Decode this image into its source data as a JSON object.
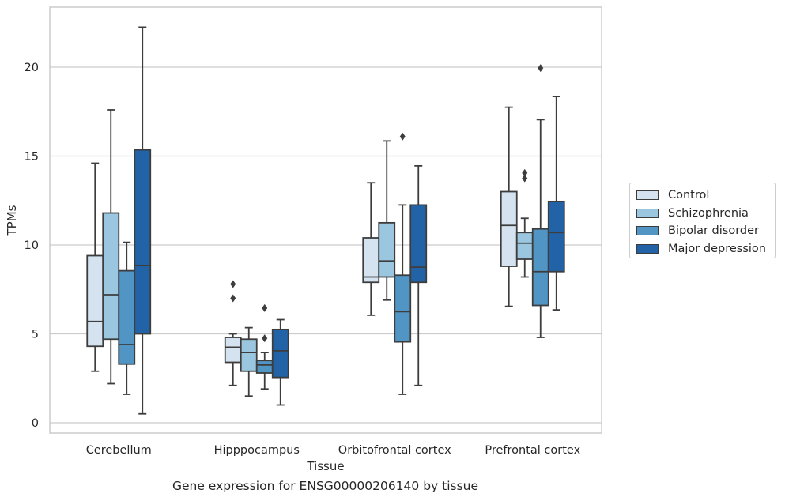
{
  "chart_data": {
    "type": "boxplot",
    "title": "Gene expression for ENSG00000206140 by tissue",
    "xlabel": "Tissue",
    "ylabel": "TPMs",
    "ylim": [
      -0.5,
      23.4
    ],
    "yticks": [
      0,
      5,
      10,
      15,
      20
    ],
    "grid": true,
    "legend_position": "right-outside",
    "categories": [
      "Cerebellum",
      "Hipppocampus",
      "Orbitofrontal cortex",
      "Prefrontal cortex"
    ],
    "series": [
      {
        "name": "Control",
        "color": "#d5e3f1",
        "boxes": [
          {
            "whislo": 2.9,
            "q1": 4.3,
            "med": 5.7,
            "q3": 9.4,
            "whishi": 14.6,
            "fliers": []
          },
          {
            "whislo": 2.1,
            "q1": 3.4,
            "med": 4.25,
            "q3": 4.8,
            "whishi": 5.0,
            "fliers": [
              7.0,
              7.8
            ]
          },
          {
            "whislo": 6.05,
            "q1": 7.9,
            "med": 8.2,
            "q3": 10.4,
            "whishi": 13.5,
            "fliers": []
          },
          {
            "whislo": 6.55,
            "q1": 8.8,
            "med": 11.1,
            "q3": 13.0,
            "whishi": 17.75,
            "fliers": []
          }
        ]
      },
      {
        "name": "Schizophrenia",
        "color": "#9ac7df",
        "boxes": [
          {
            "whislo": 2.2,
            "q1": 4.7,
            "med": 7.2,
            "q3": 11.8,
            "whishi": 17.6,
            "fliers": []
          },
          {
            "whislo": 1.5,
            "q1": 2.9,
            "med": 3.95,
            "q3": 4.7,
            "whishi": 5.35,
            "fliers": []
          },
          {
            "whislo": 6.9,
            "q1": 8.2,
            "med": 9.1,
            "q3": 11.25,
            "whishi": 15.85,
            "fliers": []
          },
          {
            "whislo": 8.2,
            "q1": 9.2,
            "med": 10.1,
            "q3": 10.7,
            "whishi": 11.5,
            "fliers": [
              13.75,
              14.05
            ]
          }
        ]
      },
      {
        "name": "Bipolar disorder",
        "color": "#5195c4",
        "boxes": [
          {
            "whislo": 1.6,
            "q1": 3.3,
            "med": 4.4,
            "q3": 8.55,
            "whishi": 10.15,
            "fliers": []
          },
          {
            "whislo": 1.9,
            "q1": 2.8,
            "med": 3.25,
            "q3": 3.5,
            "whishi": 3.95,
            "fliers": [
              4.75,
              6.45
            ]
          },
          {
            "whislo": 1.6,
            "q1": 4.55,
            "med": 6.25,
            "q3": 8.3,
            "whishi": 12.25,
            "fliers": [
              16.1
            ]
          },
          {
            "whislo": 4.8,
            "q1": 6.6,
            "med": 8.5,
            "q3": 10.9,
            "whishi": 17.05,
            "fliers": [
              19.95
            ]
          }
        ]
      },
      {
        "name": "Major depression",
        "color": "#2163a6",
        "boxes": [
          {
            "whislo": 0.5,
            "q1": 5.0,
            "med": 8.85,
            "q3": 15.35,
            "whishi": 22.25,
            "fliers": []
          },
          {
            "whislo": 1.0,
            "q1": 2.55,
            "med": 4.05,
            "q3": 5.25,
            "whishi": 5.8,
            "fliers": []
          },
          {
            "whislo": 2.1,
            "q1": 7.9,
            "med": 8.75,
            "q3": 12.25,
            "whishi": 14.45,
            "fliers": []
          },
          {
            "whislo": 6.35,
            "q1": 8.5,
            "med": 10.7,
            "q3": 12.45,
            "whishi": 18.35,
            "fliers": []
          }
        ]
      }
    ]
  }
}
